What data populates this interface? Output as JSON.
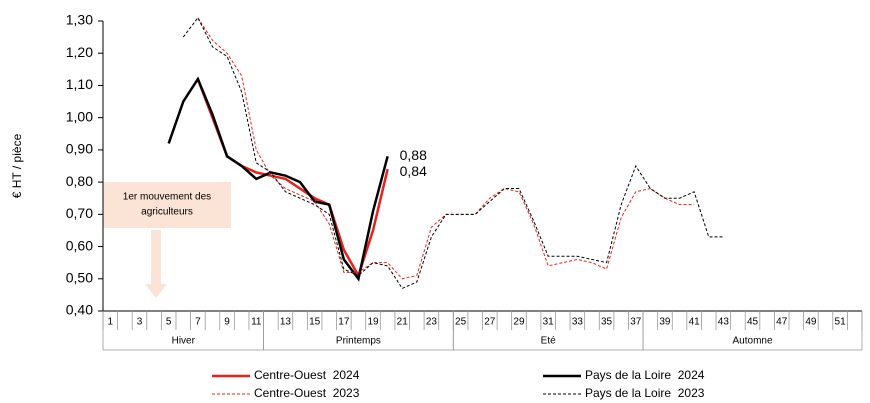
{
  "chart_data": {
    "type": "line",
    "y_label": "€ HT / pièce",
    "annotation": [
      "1er mouvement des",
      "agriculteurs"
    ],
    "categories": [
      "1",
      null,
      "3",
      null,
      "5",
      null,
      "7",
      null,
      "9",
      null,
      "11",
      null,
      "13",
      null,
      "15",
      null,
      "17",
      null,
      "19",
      null,
      "21",
      null,
      "23",
      null,
      "25",
      null,
      "27",
      null,
      "29",
      null,
      "31",
      null,
      "33",
      null,
      "35",
      null,
      "37",
      null,
      "39",
      null,
      "41",
      null,
      "43",
      null,
      "45",
      null,
      "47",
      null,
      "49",
      null,
      "51",
      null
    ],
    "seasons": [
      {
        "label": "Hiver",
        "weeks": [
          1,
          11
        ]
      },
      {
        "label": "Printemps",
        "weeks": [
          12,
          24
        ]
      },
      {
        "label": "Eté",
        "weeks": [
          25,
          37
        ]
      },
      {
        "label": "Automne",
        "weeks": [
          38,
          52
        ]
      }
    ],
    "ylim": [
      0.4,
      1.3
    ],
    "yticks": [
      {
        "value": 0.4,
        "label": "0,40"
      },
      {
        "value": 0.5,
        "label": "0,50"
      },
      {
        "value": 0.6,
        "label": "0,60"
      },
      {
        "value": 0.7,
        "label": "0,70"
      },
      {
        "value": 0.8,
        "label": "0,80"
      },
      {
        "value": 0.9,
        "label": "0,90"
      },
      {
        "value": 1.0,
        "label": "1,00"
      },
      {
        "value": 1.1,
        "label": "1,10"
      },
      {
        "value": 1.2,
        "label": "1,20"
      },
      {
        "value": 1.3,
        "label": "1,30"
      }
    ],
    "series": [
      {
        "name": "Centre-Ouest  2024",
        "color": "#e8221b",
        "dashed": false,
        "values": [
          null,
          null,
          null,
          null,
          null,
          null,
          1.12,
          1.0,
          0.88,
          0.85,
          0.83,
          0.82,
          0.81,
          0.78,
          0.75,
          0.73,
          0.59,
          0.51,
          0.65,
          0.84,
          null,
          null,
          null,
          null,
          null,
          null,
          null,
          null,
          null,
          null,
          null,
          null,
          null,
          null,
          null,
          null,
          null,
          null,
          null,
          null,
          null,
          null,
          null,
          null,
          null,
          null,
          null,
          null,
          null,
          null,
          null,
          null
        ],
        "value_labels": [
          null,
          null,
          null,
          null,
          null,
          null,
          null,
          null,
          null,
          null,
          null,
          null,
          null,
          null,
          null,
          null,
          null,
          null,
          null,
          "0,84",
          null,
          null,
          null,
          null,
          null,
          null,
          null,
          null,
          null,
          null,
          null,
          null,
          null,
          null,
          null,
          null,
          null,
          null,
          null,
          null,
          null,
          null,
          null,
          null,
          null,
          null,
          null,
          null,
          null,
          null,
          null,
          null
        ]
      },
      {
        "name": "Pays de la Loire  2024",
        "color": "#000000",
        "dashed": false,
        "values": [
          null,
          null,
          null,
          null,
          0.92,
          1.05,
          1.12,
          1.01,
          0.88,
          0.85,
          0.81,
          0.83,
          0.82,
          0.8,
          0.74,
          0.73,
          0.56,
          0.5,
          0.71,
          0.88,
          null,
          null,
          null,
          null,
          null,
          null,
          null,
          null,
          null,
          null,
          null,
          null,
          null,
          null,
          null,
          null,
          null,
          null,
          null,
          null,
          null,
          null,
          null,
          null,
          null,
          null,
          null,
          null,
          null,
          null,
          null,
          null
        ],
        "value_labels": [
          null,
          null,
          null,
          null,
          null,
          null,
          null,
          null,
          null,
          null,
          null,
          null,
          null,
          null,
          null,
          null,
          null,
          null,
          null,
          "0,88",
          null,
          null,
          null,
          null,
          null,
          null,
          null,
          null,
          null,
          null,
          null,
          null,
          null,
          null,
          null,
          null,
          null,
          null,
          null,
          null,
          null,
          null,
          null,
          null,
          null,
          null,
          null,
          null,
          null,
          null,
          null,
          null
        ]
      },
      {
        "name": "Centre-Ouest  2023",
        "color": "#e8221b",
        "dashed": true,
        "values": [
          null,
          null,
          null,
          null,
          null,
          null,
          1.31,
          1.24,
          1.2,
          1.13,
          0.9,
          0.82,
          0.78,
          0.76,
          0.74,
          0.67,
          0.52,
          0.52,
          0.55,
          0.55,
          0.5,
          0.51,
          0.66,
          0.7,
          0.7,
          0.7,
          0.75,
          0.78,
          0.77,
          0.67,
          0.54,
          0.55,
          0.56,
          0.55,
          0.53,
          0.69,
          0.77,
          0.78,
          0.75,
          0.73,
          0.73,
          null,
          null,
          null,
          null,
          null,
          null,
          null,
          null,
          null,
          null,
          null
        ]
      },
      {
        "name": "Pays de la Loire  2023",
        "color": "#000000",
        "dashed": true,
        "values": [
          null,
          null,
          null,
          null,
          null,
          1.25,
          1.31,
          1.22,
          1.19,
          1.08,
          0.86,
          0.83,
          0.77,
          0.75,
          0.73,
          0.7,
          0.53,
          0.51,
          0.55,
          0.54,
          0.47,
          0.49,
          0.63,
          0.7,
          0.7,
          0.7,
          0.74,
          0.78,
          0.78,
          0.68,
          0.57,
          0.57,
          0.57,
          0.56,
          0.55,
          0.73,
          0.85,
          0.78,
          0.75,
          0.75,
          0.77,
          0.63,
          0.63,
          null,
          null,
          null,
          null,
          null,
          null,
          null,
          null,
          null
        ]
      }
    ]
  }
}
